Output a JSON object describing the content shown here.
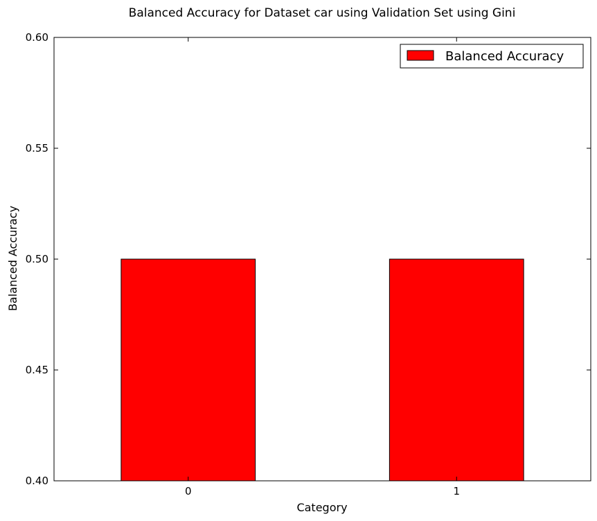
{
  "chart_data": {
    "type": "bar",
    "title": "Balanced Accuracy for Dataset car using Validation Set using Gini",
    "xlabel": "Category",
    "ylabel": "Balanced Accuracy",
    "categories": [
      "0",
      "1"
    ],
    "series": [
      {
        "name": "Balanced Accuracy",
        "values": [
          0.5,
          0.5
        ],
        "color": "#ff0000"
      }
    ],
    "ylim": [
      0.4,
      0.6
    ],
    "yticks": [
      "0.40",
      "0.45",
      "0.50",
      "0.55",
      "0.60"
    ],
    "grid": false,
    "legend_position": "top-right"
  }
}
